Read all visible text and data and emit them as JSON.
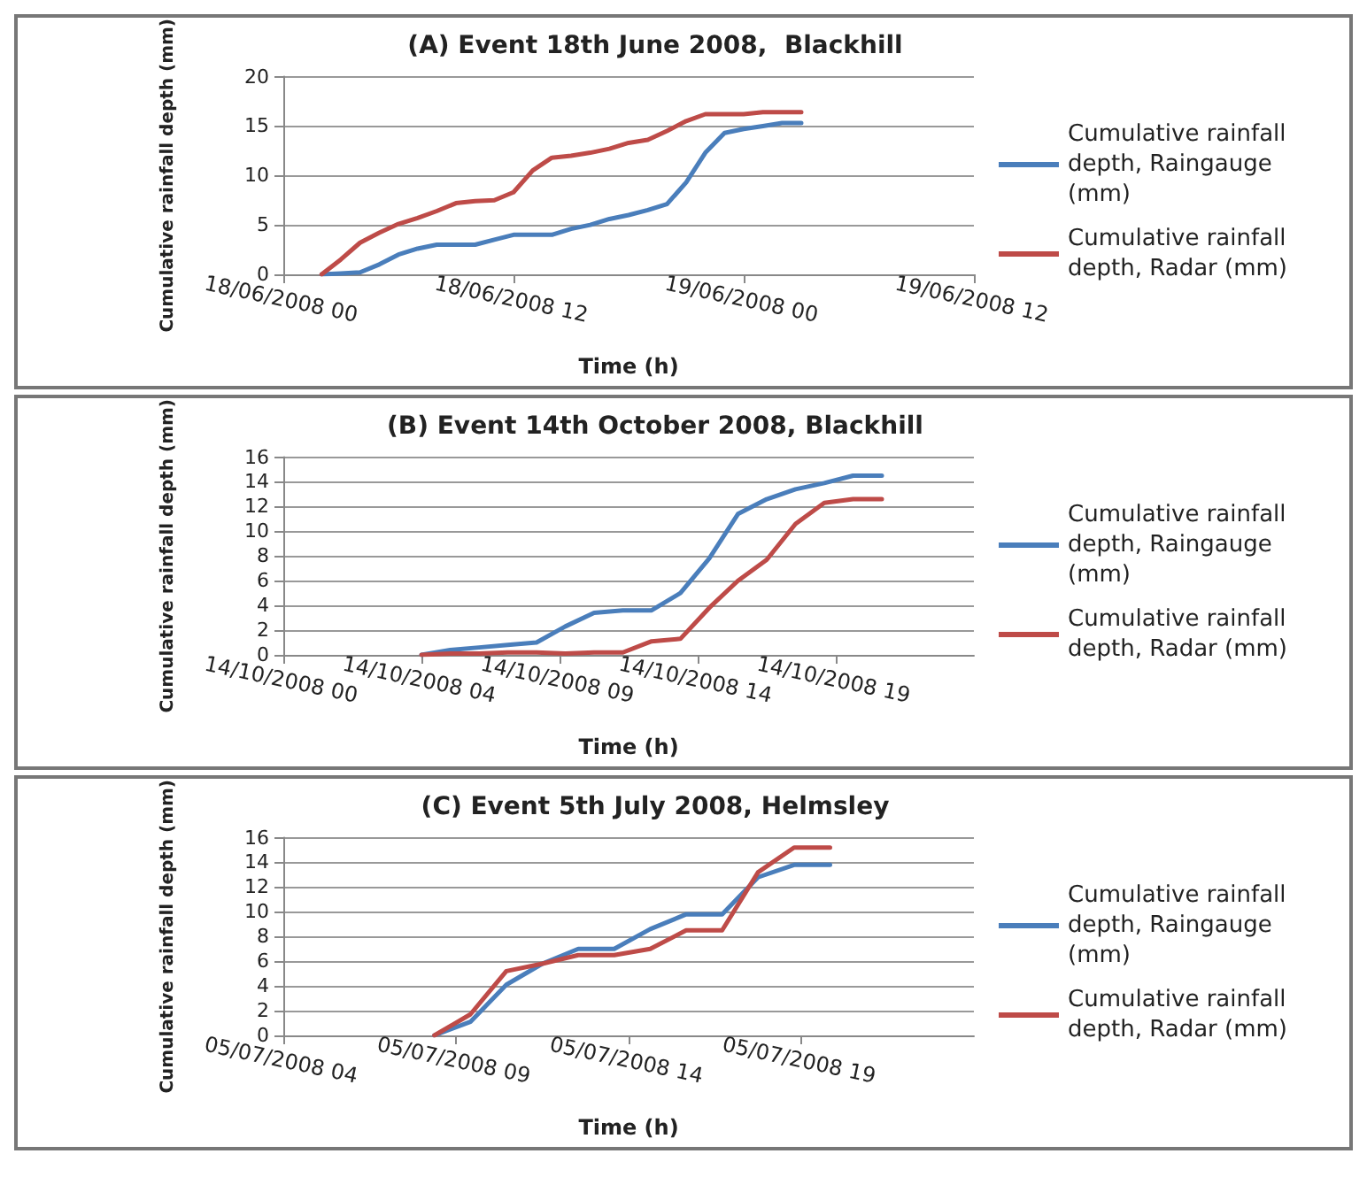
{
  "chart_data": [
    {
      "type": "line",
      "title": "(A) Event 18th June 2008,  Blackhill",
      "xlabel": "Time (h)",
      "ylabel": "Cumulative rainfall depth (mm)",
      "x": [
        "2008-06-18T02:00",
        "2008-06-18T03:00",
        "2008-06-18T04:00",
        "2008-06-18T05:00",
        "2008-06-18T06:00",
        "2008-06-18T07:00",
        "2008-06-18T08:00",
        "2008-06-18T09:00",
        "2008-06-18T10:00",
        "2008-06-18T11:00",
        "2008-06-18T12:00",
        "2008-06-18T13:00",
        "2008-06-18T14:00",
        "2008-06-18T15:00",
        "2008-06-18T16:00",
        "2008-06-18T17:00",
        "2008-06-18T18:00",
        "2008-06-18T19:00",
        "2008-06-18T20:00",
        "2008-06-18T21:00",
        "2008-06-18T22:00",
        "2008-06-18T23:00",
        "2008-06-19T00:00",
        "2008-06-19T01:00",
        "2008-06-19T02:00",
        "2008-06-19T03:00"
      ],
      "series": [
        {
          "name": "Cumulative rainfall depth, Raingauge (mm)",
          "color": "#4a7ebb",
          "values": [
            0,
            0.1,
            0.2,
            1.0,
            2.0,
            2.6,
            3.0,
            3.0,
            3.0,
            3.5,
            4.0,
            4.0,
            4.0,
            4.6,
            5.0,
            5.6,
            6.0,
            6.5,
            7.1,
            9.3,
            12.3,
            14.3,
            14.7,
            15.0,
            15.3,
            15.3
          ]
        },
        {
          "name": "Cumulative rainfall depth, Radar (mm)",
          "color": "#be4b48",
          "values": [
            0,
            1.5,
            3.2,
            4.2,
            5.1,
            5.7,
            6.4,
            7.2,
            7.4,
            7.5,
            8.3,
            10.5,
            11.8,
            12.0,
            12.3,
            12.7,
            13.3,
            13.6,
            14.5,
            15.5,
            16.2,
            16.2,
            16.2,
            16.4,
            16.4,
            16.4
          ]
        }
      ],
      "xlim": [
        "2008-06-18T00:00",
        "2008-06-19T12:00"
      ],
      "xticks": [
        {
          "value": "2008-06-18T00:00",
          "label": "18/06/2008 00"
        },
        {
          "value": "2008-06-18T12:00",
          "label": "18/06/2008 12"
        },
        {
          "value": "2008-06-19T00:00",
          "label": "19/06/2008 00"
        },
        {
          "value": "2008-06-19T12:00",
          "label": "19/06/2008 12"
        }
      ],
      "ylim": [
        0,
        20
      ],
      "yticks": [
        0,
        5,
        10,
        15,
        20
      ],
      "grid": "y",
      "legend": "right",
      "marker": "none",
      "line_style": "solid"
    },
    {
      "type": "line",
      "title": "(B) Event 14th October 2008, Blackhill",
      "xlabel": "Time (h)",
      "ylabel": "Cumulative rainfall depth (mm)",
      "x": [
        "2008-10-14T04:48",
        "2008-10-14T05:48",
        "2008-10-14T06:48",
        "2008-10-14T07:48",
        "2008-10-14T08:48",
        "2008-10-14T09:48",
        "2008-10-14T10:48",
        "2008-10-14T11:48",
        "2008-10-14T12:48",
        "2008-10-14T13:48",
        "2008-10-14T14:48",
        "2008-10-14T15:48",
        "2008-10-14T16:48",
        "2008-10-14T17:48",
        "2008-10-14T18:48",
        "2008-10-14T19:48",
        "2008-10-14T20:48"
      ],
      "series": [
        {
          "name": "Cumulative rainfall depth, Raingauge (mm)",
          "color": "#4a7ebb",
          "values": [
            0,
            0.4,
            0.6,
            0.8,
            1.0,
            2.3,
            3.4,
            3.6,
            3.6,
            5.0,
            7.8,
            11.4,
            12.6,
            13.4,
            13.9,
            14.5,
            14.5
          ]
        },
        {
          "name": "Cumulative rainfall depth, Radar (mm)",
          "color": "#be4b48",
          "values": [
            0,
            0.1,
            0.1,
            0.2,
            0.2,
            0.1,
            0.2,
            0.2,
            1.1,
            1.3,
            3.8,
            6.0,
            7.7,
            10.6,
            12.3,
            12.6,
            12.6
          ]
        }
      ],
      "xlim": [
        "2008-10-14T00:00",
        "2008-10-15T00:00"
      ],
      "xticks": [
        {
          "value": "2008-10-14T00:00",
          "label": "14/10/2008 00"
        },
        {
          "value": "2008-10-14T04:48",
          "label": "14/10/2008 04"
        },
        {
          "value": "2008-10-14T09:36",
          "label": "14/10/2008 09"
        },
        {
          "value": "2008-10-14T14:24",
          "label": "14/10/2008 14"
        },
        {
          "value": "2008-10-14T19:12",
          "label": "14/10/2008 19"
        }
      ],
      "ylim": [
        0,
        16
      ],
      "yticks": [
        0,
        2,
        4,
        6,
        8,
        10,
        12,
        14,
        16
      ],
      "grid": "y",
      "legend": "right",
      "marker": "none",
      "line_style": "solid"
    },
    {
      "type": "line",
      "title": "(C) Event 5th July 2008, Helmsley",
      "xlabel": "Time (h)",
      "ylabel": "Cumulative rainfall depth (mm)",
      "x": [
        "2008-07-05T09:00",
        "2008-07-05T10:00",
        "2008-07-05T11:00",
        "2008-07-05T12:00",
        "2008-07-05T13:00",
        "2008-07-05T14:00",
        "2008-07-05T15:00",
        "2008-07-05T16:00",
        "2008-07-05T17:00",
        "2008-07-05T18:00",
        "2008-07-05T19:00",
        "2008-07-05T20:00"
      ],
      "series": [
        {
          "name": "Cumulative rainfall depth, Raingauge (mm)",
          "color": "#4a7ebb",
          "values": [
            0,
            1.1,
            4.1,
            5.8,
            7.0,
            7.0,
            8.6,
            9.8,
            9.8,
            12.8,
            13.8,
            13.8
          ]
        },
        {
          "name": "Cumulative rainfall depth, Radar (mm)",
          "color": "#be4b48",
          "values": [
            0,
            1.7,
            5.2,
            5.8,
            6.5,
            6.5,
            7.0,
            8.5,
            8.5,
            13.2,
            15.2,
            15.2
          ]
        }
      ],
      "xlim": [
        "2008-07-05T04:48",
        "2008-07-06T00:00"
      ],
      "xticks": [
        {
          "value": "2008-07-05T04:48",
          "label": "05/07/2008 04"
        },
        {
          "value": "2008-07-05T09:36",
          "label": "05/07/2008 09"
        },
        {
          "value": "2008-07-05T14:24",
          "label": "05/07/2008 14"
        },
        {
          "value": "2008-07-05T19:12",
          "label": "05/07/2008 19"
        }
      ],
      "ylim": [
        0,
        16
      ],
      "yticks": [
        0,
        2,
        4,
        6,
        8,
        10,
        12,
        14,
        16
      ],
      "grid": "y",
      "legend": "right",
      "marker": "none",
      "line_style": "solid"
    }
  ]
}
